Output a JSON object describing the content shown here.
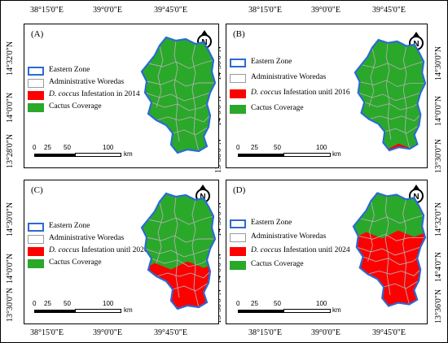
{
  "axes": {
    "top_longitudes": [
      "38°15'0\"E",
      "39°0'0\"E",
      "39°45'0\"E"
    ],
    "bottom_longitudes": [
      "38°15'0\"E",
      "39°0'0\"E",
      "39°45'0\"E"
    ],
    "left_latitudes_top": [
      "14°32'0\"N",
      "14°0'0\"N",
      "13°28'0\"N"
    ],
    "left_latitudes_bottom": [
      "14°30'0\"N",
      "14°0'0\"N",
      "13°30'0\"N"
    ],
    "right_latitudes_top": [
      "14°30'0\"N",
      "14°0'0\"N",
      "13°30'0\"N"
    ],
    "right_latitudes_bottom": [
      "14°32'0\"N",
      "14°4'0\"N",
      "13°36'0\"N"
    ]
  },
  "colors": {
    "zone": "#2a6ad6",
    "woreda": "#b0b0b0",
    "infestation": "#ff0000",
    "cactus": "#2aa82a"
  },
  "panels": [
    {
      "label": "(A)",
      "legend": {
        "zone": "Eastern Zone",
        "woredas": "Administrative Woredas",
        "inf_species": "D. coccus",
        "inf_rest": " Infestation in 2014",
        "cactus": "Cactus Coverage"
      },
      "infestation_share": 0.02
    },
    {
      "label": "(B)",
      "legend": {
        "zone": "Eastern Zone",
        "woredas": "Administrative Woredas",
        "inf_species": "D. coccus",
        "inf_rest": " Infestation unitl 2016",
        "cactus": "Cactus Coverage"
      },
      "infestation_share": 0.06
    },
    {
      "label": "(C)",
      "legend": {
        "zone": "Eastern Zone",
        "woredas": "Administrative Woredas",
        "inf_species": "D. coccus",
        "inf_rest": " Infestation unitl 2020",
        "cactus": "Cactus Coverage"
      },
      "infestation_share": 0.4
    },
    {
      "label": "(D)",
      "legend": {
        "zone": "Eastern Zone",
        "woredas": "Administrative Woredas",
        "inf_species": "D. coccus",
        "inf_rest": " Infestation unitl 2024",
        "cactus": "Cactus Coverage"
      },
      "infestation_share": 0.65
    }
  ],
  "scale": {
    "ticks": [
      "0",
      "25",
      "50",
      "100"
    ],
    "unit": "km"
  },
  "north_letter": "N"
}
